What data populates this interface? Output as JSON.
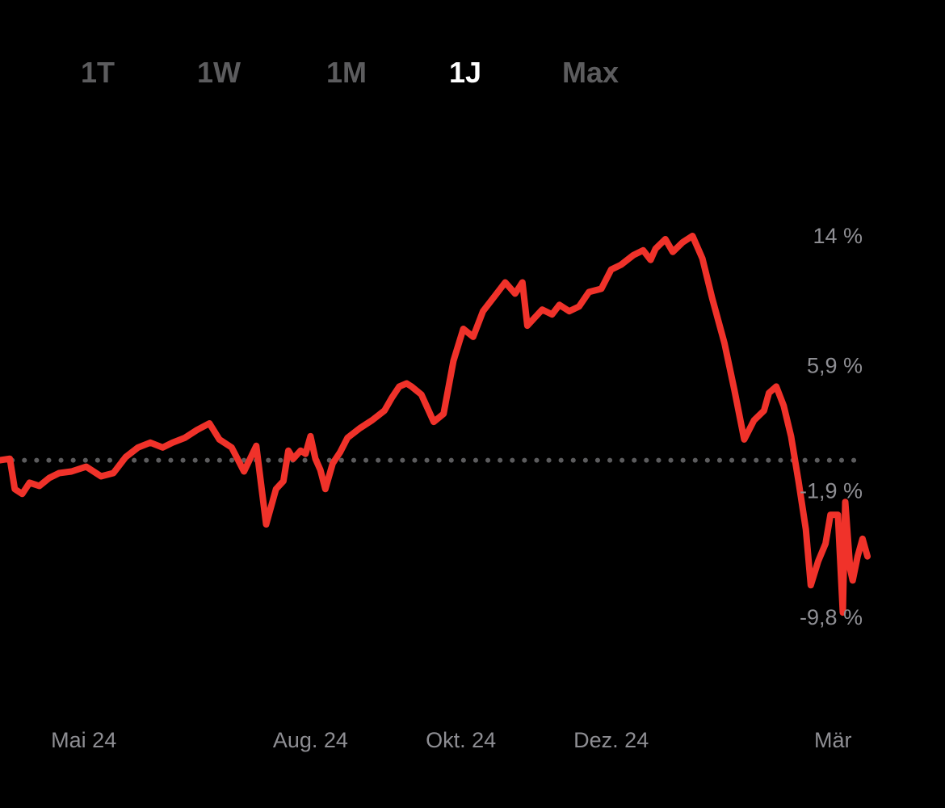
{
  "tabs": [
    {
      "label": "1T",
      "active": false
    },
    {
      "label": "1W",
      "active": false
    },
    {
      "label": "1M",
      "active": false
    },
    {
      "label": "1J",
      "active": true
    },
    {
      "label": "Max",
      "active": false
    }
  ],
  "colors": {
    "background": "#000000",
    "line": "#f0322a",
    "baseline": "#5c5c5e",
    "label": "#8e8e93",
    "tab_inactive": "#5c5c5e",
    "tab_active": "#ffffff"
  },
  "chart_data": {
    "type": "line",
    "title": "",
    "xlabel": "",
    "ylabel": "",
    "y_unit": "%",
    "ylim": [
      -9.8,
      14
    ],
    "baseline": 0,
    "baseline_style": "dotted",
    "grid": false,
    "y_ticks": [
      {
        "value": 14,
        "label": "14 %"
      },
      {
        "value": 5.9,
        "label": "5,9 %"
      },
      {
        "value": -1.9,
        "label": "-1,9 %"
      },
      {
        "value": -9.8,
        "label": "-9,8 %"
      }
    ],
    "x_ticks": [
      {
        "date": "2024-05-01",
        "label": "Mai 24"
      },
      {
        "date": "2024-08-01",
        "label": "Aug. 24"
      },
      {
        "date": "2024-10-01",
        "label": "Okt. 24"
      },
      {
        "date": "2024-12-01",
        "label": "Dez. 24"
      },
      {
        "date": "2025-03-01",
        "label": "Mär"
      }
    ],
    "series": [
      {
        "x": [
          "2024-03-28",
          "2024-04-01",
          "2024-04-03",
          "2024-04-06",
          "2024-04-09",
          "2024-04-13",
          "2024-04-17",
          "2024-04-21",
          "2024-04-26",
          "2024-05-02",
          "2024-05-08",
          "2024-05-13",
          "2024-05-18",
          "2024-05-23",
          "2024-05-28",
          "2024-06-02",
          "2024-06-06",
          "2024-06-11",
          "2024-06-16",
          "2024-06-21",
          "2024-06-25",
          "2024-06-30",
          "2024-07-05",
          "2024-07-10",
          "2024-07-14",
          "2024-07-18",
          "2024-07-21",
          "2024-07-23",
          "2024-07-25",
          "2024-07-28",
          "2024-07-30",
          "2024-08-01",
          "2024-08-03",
          "2024-08-05",
          "2024-08-07",
          "2024-08-10",
          "2024-08-13",
          "2024-08-16",
          "2024-08-21",
          "2024-08-26",
          "2024-08-31",
          "2024-09-03",
          "2024-09-06",
          "2024-09-09",
          "2024-09-11",
          "2024-09-15",
          "2024-09-20",
          "2024-09-24",
          "2024-09-28",
          "2024-10-02",
          "2024-10-06",
          "2024-10-10",
          "2024-10-15",
          "2024-10-19",
          "2024-10-23",
          "2024-10-26",
          "2024-10-28",
          "2024-10-31",
          "2024-11-03",
          "2024-11-07",
          "2024-11-10",
          "2024-11-14",
          "2024-11-18",
          "2024-11-22",
          "2024-11-27",
          "2024-12-01",
          "2024-12-05",
          "2024-12-10",
          "2024-12-14",
          "2024-12-17",
          "2024-12-19",
          "2024-12-23",
          "2024-12-26",
          "2024-12-30",
          "2025-01-03",
          "2025-01-07",
          "2025-01-11",
          "2025-01-16",
          "2025-01-20",
          "2025-01-24",
          "2025-01-28",
          "2025-02-01",
          "2025-02-03",
          "2025-02-06",
          "2025-02-09",
          "2025-02-12",
          "2025-02-15",
          "2025-02-18",
          "2025-02-20",
          "2025-02-23",
          "2025-02-26",
          "2025-02-28",
          "2025-03-03",
          "2025-03-05",
          "2025-03-06",
          "2025-03-08",
          "2025-03-09",
          "2025-03-11",
          "2025-03-13",
          "2025-03-15"
        ],
        "y": [
          0,
          0.1,
          -1.8,
          -2.1,
          -1.4,
          -1.6,
          -1.1,
          -0.8,
          -0.7,
          -0.4,
          -1.0,
          -0.8,
          0.2,
          0.8,
          1.1,
          0.8,
          1.1,
          1.4,
          1.9,
          2.3,
          1.3,
          0.8,
          -0.7,
          0.9,
          -4.0,
          -1.8,
          -1.3,
          0.6,
          0.1,
          0.6,
          0.4,
          1.5,
          0.1,
          -0.6,
          -1.8,
          -0.2,
          0.5,
          1.4,
          2.0,
          2.5,
          3.1,
          3.9,
          4.6,
          4.8,
          4.6,
          4.1,
          2.4,
          2.9,
          6.2,
          8.2,
          7.7,
          9.3,
          10.3,
          11.1,
          10.4,
          11.1,
          8.4,
          8.9,
          9.4,
          9.1,
          9.7,
          9.3,
          9.6,
          10.5,
          10.7,
          11.9,
          12.2,
          12.8,
          13.1,
          12.5,
          13.2,
          13.8,
          13.0,
          13.6,
          14.0,
          12.6,
          10.1,
          7.3,
          4.4,
          1.3,
          2.5,
          3.1,
          4.2,
          4.6,
          3.4,
          1.5,
          -1.3,
          -4.3,
          -7.8,
          -6.3,
          -5.2,
          -3.4,
          -3.4,
          -9.5,
          -2.6,
          -6.8,
          -7.5,
          -6.0,
          -4.9,
          -6.0
        ]
      }
    ]
  }
}
